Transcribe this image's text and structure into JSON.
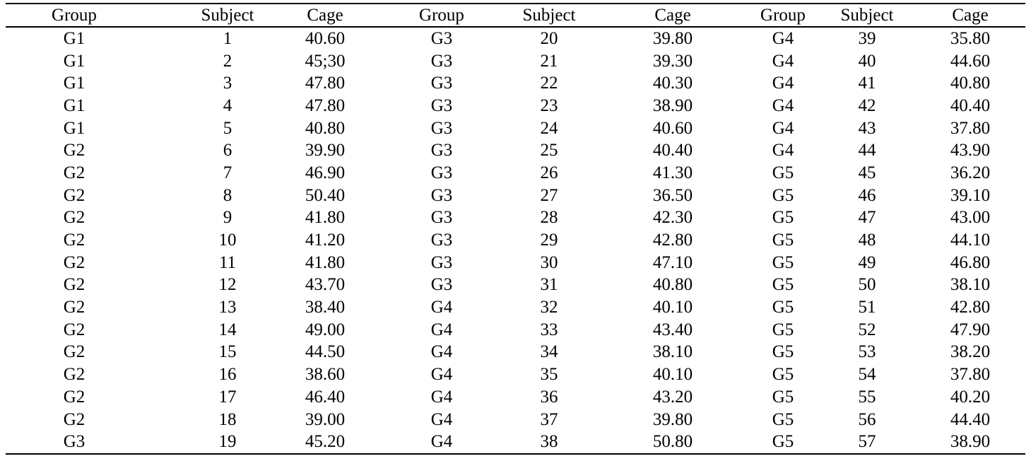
{
  "colors": {
    "background": "#ffffff",
    "text": "#000000",
    "rule": "#000000"
  },
  "table": {
    "column_headers": [
      "Group",
      "Subject",
      "Cage",
      "Group",
      "Subject",
      "Cage",
      "Group",
      "Subject",
      "Cage"
    ],
    "sections": [
      {
        "rows": [
          {
            "group": "G1",
            "subject": "1",
            "cage": "40.60"
          },
          {
            "group": "G1",
            "subject": "2",
            "cage": "45;30"
          },
          {
            "group": "G1",
            "subject": "3",
            "cage": "47.80"
          },
          {
            "group": "G1",
            "subject": "4",
            "cage": "47.80"
          },
          {
            "group": "G1",
            "subject": "5",
            "cage": "40.80"
          },
          {
            "group": "G2",
            "subject": "6",
            "cage": "39.90"
          },
          {
            "group": "G2",
            "subject": "7",
            "cage": "46.90"
          },
          {
            "group": "G2",
            "subject": "8",
            "cage": "50.40"
          },
          {
            "group": "G2",
            "subject": "9",
            "cage": "41.80"
          },
          {
            "group": "G2",
            "subject": "10",
            "cage": "41.20"
          },
          {
            "group": "G2",
            "subject": "11",
            "cage": "41.80"
          },
          {
            "group": "G2",
            "subject": "12",
            "cage": "43.70"
          },
          {
            "group": "G2",
            "subject": "13",
            "cage": "38.40"
          },
          {
            "group": "G2",
            "subject": "14",
            "cage": "49.00"
          },
          {
            "group": "G2",
            "subject": "15",
            "cage": "44.50"
          },
          {
            "group": "G2",
            "subject": "16",
            "cage": "38.60"
          },
          {
            "group": "G2",
            "subject": "17",
            "cage": "46.40"
          },
          {
            "group": "G2",
            "subject": "18",
            "cage": "39.00"
          },
          {
            "group": "G3",
            "subject": "19",
            "cage": "45.20"
          }
        ]
      },
      {
        "rows": [
          {
            "group": "G3",
            "subject": "20",
            "cage": "39.80"
          },
          {
            "group": "G3",
            "subject": "21",
            "cage": "39.30"
          },
          {
            "group": "G3",
            "subject": "22",
            "cage": "40.30"
          },
          {
            "group": "G3",
            "subject": "23",
            "cage": "38.90"
          },
          {
            "group": "G3",
            "subject": "24",
            "cage": "40.60"
          },
          {
            "group": "G3",
            "subject": "25",
            "cage": "40.40"
          },
          {
            "group": "G3",
            "subject": "26",
            "cage": "41.30"
          },
          {
            "group": "G3",
            "subject": "27",
            "cage": "36.50"
          },
          {
            "group": "G3",
            "subject": "28",
            "cage": "42.30"
          },
          {
            "group": "G3",
            "subject": "29",
            "cage": "42.80"
          },
          {
            "group": "G3",
            "subject": "30",
            "cage": "47.10"
          },
          {
            "group": "G3",
            "subject": "31",
            "cage": "40.80"
          },
          {
            "group": "G4",
            "subject": "32",
            "cage": "40.10"
          },
          {
            "group": "G4",
            "subject": "33",
            "cage": "43.40"
          },
          {
            "group": "G4",
            "subject": "34",
            "cage": "38.10"
          },
          {
            "group": "G4",
            "subject": "35",
            "cage": "40.10"
          },
          {
            "group": "G4",
            "subject": "36",
            "cage": "43.20"
          },
          {
            "group": "G4",
            "subject": "37",
            "cage": "39.80"
          },
          {
            "group": "G4",
            "subject": "38",
            "cage": "50.80",
            "bold": true
          }
        ]
      },
      {
        "rows": [
          {
            "group": "G4",
            "subject": "39",
            "cage": "35.80"
          },
          {
            "group": "G4",
            "subject": "40",
            "cage": "44.60"
          },
          {
            "group": "G4",
            "subject": "41",
            "cage": "40.80"
          },
          {
            "group": "G4",
            "subject": "42",
            "cage": "40.40"
          },
          {
            "group": "G4",
            "subject": "43",
            "cage": "37.80"
          },
          {
            "group": "G4",
            "subject": "44",
            "cage": "43.90"
          },
          {
            "group": "G5",
            "subject": "45",
            "cage": "36.20"
          },
          {
            "group": "G5",
            "subject": "46",
            "cage": "39.10"
          },
          {
            "group": "G5",
            "subject": "47",
            "cage": "43.00"
          },
          {
            "group": "G5",
            "subject": "48",
            "cage": "44.10"
          },
          {
            "group": "G5",
            "subject": "49",
            "cage": "46.80"
          },
          {
            "group": "G5",
            "subject": "50",
            "cage": "38.10"
          },
          {
            "group": "G5",
            "subject": "51",
            "cage": "42.80"
          },
          {
            "group": "G5",
            "subject": "52",
            "cage": "47.90"
          },
          {
            "group": "G5",
            "subject": "53",
            "cage": "38.20"
          },
          {
            "group": "G5",
            "subject": "54",
            "cage": "37.80"
          },
          {
            "group": "G5",
            "subject": "55",
            "cage": "40.20"
          },
          {
            "group": "G5",
            "subject": "56",
            "cage": "44.40"
          },
          {
            "group": "G5",
            "subject": "57",
            "cage": "38.90"
          }
        ]
      }
    ]
  }
}
